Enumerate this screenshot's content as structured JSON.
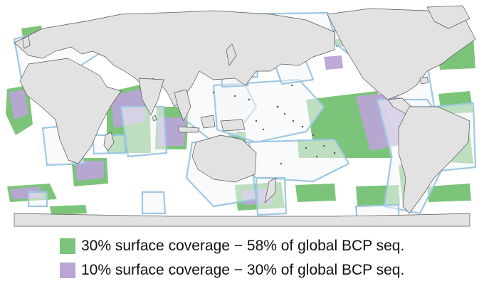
{
  "legend": [
    {
      "label": "30% surface coverage − 58% of global BCP seq.",
      "color": "#7cc47a"
    },
    {
      "label": "10% surface coverage − 30% of global BCP seq.",
      "color": "#b9a5d6"
    }
  ],
  "colors": {
    "land": "#e2e2e2",
    "land_stroke": "#555555",
    "ocean": "#ffffff",
    "eez_outline": "#9ec8e2",
    "eez_fill": "#f4f6f8",
    "high_priority": "#7cc47a",
    "top_priority": "#b9a5d6"
  }
}
